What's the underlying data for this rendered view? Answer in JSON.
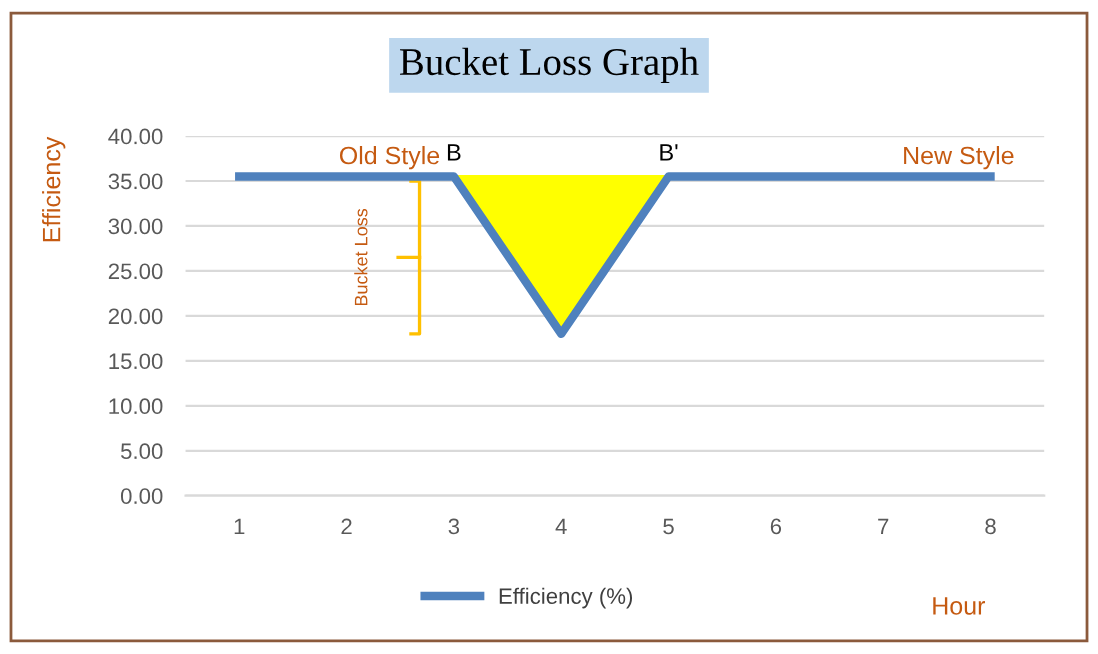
{
  "chart_data": {
    "type": "line",
    "title": "Bucket Loss Graph",
    "xlabel": "Hour",
    "ylabel": "Efficiency",
    "categories": [
      "1",
      "2",
      "3",
      "4",
      "5",
      "6",
      "7",
      "8"
    ],
    "series": [
      {
        "name": "Efficiency (%)",
        "color": "#4f81bd",
        "values": [
          35.5,
          35.5,
          35.5,
          18,
          35.5,
          35.5,
          35.5,
          35.5
        ]
      }
    ],
    "ylim": [
      0,
      40
    ],
    "yticks": [
      {
        "value": 0,
        "label": "0.00"
      },
      {
        "value": 5,
        "label": "5.00"
      },
      {
        "value": 10,
        "label": "10.00"
      },
      {
        "value": 15,
        "label": "15.00"
      },
      {
        "value": 20,
        "label": "20.00"
      },
      {
        "value": 25,
        "label": "25.00"
      },
      {
        "value": 30,
        "label": "30.00"
      },
      {
        "value": 35,
        "label": "35.00"
      },
      {
        "value": 40,
        "label": "40.00"
      }
    ],
    "grid": "y",
    "legend": "bottom",
    "marker": "none",
    "line_style": "solid",
    "annotations": [
      "Old Style",
      {
        "text": "B",
        "x": "3",
        "y": 35.5
      },
      {
        "text": "B'",
        "x": "5",
        "y": 35.5
      },
      "New Style",
      "Bucket Loss"
    ]
  }
}
